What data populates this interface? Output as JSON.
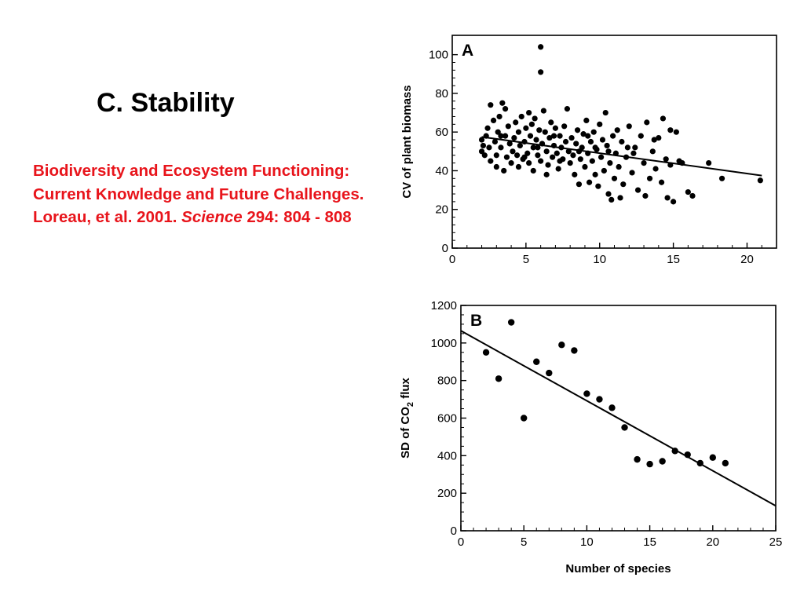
{
  "slide": {
    "title": "C. Stability",
    "citation": {
      "text_before": "Biodiversity and Ecosystem Functioning: Current Knowledge and Future Challenges.  Loreau, et al. 2001. ",
      "journal": "Science",
      "text_after": " 294: 804 - 808",
      "color": "#e8141b"
    }
  },
  "chart_data": [
    {
      "type": "scatter",
      "panel_label": "A",
      "xlabel": "",
      "ylabel": "CV of plant biomass",
      "xlim": [
        0,
        22
      ],
      "ylim": [
        0,
        110
      ],
      "xticks": [
        0,
        5,
        10,
        15,
        20
      ],
      "yticks": [
        0,
        20,
        40,
        60,
        80,
        100
      ],
      "grid": false,
      "regression": {
        "x": [
          2,
          21
        ],
        "y": [
          57.5,
          37.5
        ]
      },
      "points": [
        [
          6.0,
          104
        ],
        [
          6.0,
          91
        ],
        [
          2.0,
          50
        ],
        [
          2.0,
          56
        ],
        [
          2.1,
          53
        ],
        [
          2.2,
          48
        ],
        [
          2.3,
          58
        ],
        [
          2.4,
          62
        ],
        [
          2.5,
          52
        ],
        [
          2.6,
          45
        ],
        [
          2.6,
          74
        ],
        [
          2.8,
          66
        ],
        [
          2.9,
          55
        ],
        [
          3.0,
          42
        ],
        [
          3.0,
          48
        ],
        [
          3.1,
          60
        ],
        [
          3.2,
          68
        ],
        [
          3.3,
          52
        ],
        [
          3.4,
          75
        ],
        [
          3.5,
          40
        ],
        [
          3.6,
          72
        ],
        [
          3.6,
          58
        ],
        [
          3.7,
          47
        ],
        [
          3.8,
          63
        ],
        [
          3.9,
          54
        ],
        [
          4.0,
          44
        ],
        [
          4.1,
          50
        ],
        [
          4.2,
          57
        ],
        [
          4.3,
          65
        ],
        [
          4.4,
          48
        ],
        [
          4.5,
          60
        ],
        [
          4.5,
          42
        ],
        [
          4.6,
          53
        ],
        [
          4.7,
          68
        ],
        [
          4.8,
          46
        ],
        [
          4.9,
          55
        ],
        [
          5.0,
          62
        ],
        [
          5.1,
          49
        ],
        [
          5.2,
          70
        ],
        [
          5.2,
          44
        ],
        [
          5.3,
          58
        ],
        [
          5.4,
          64
        ],
        [
          5.5,
          52
        ],
        [
          5.5,
          40
        ],
        [
          5.6,
          67
        ],
        [
          5.7,
          56
        ],
        [
          5.8,
          48
        ],
        [
          5.9,
          61
        ],
        [
          6.0,
          45
        ],
        [
          6.1,
          54
        ],
        [
          6.2,
          71
        ],
        [
          6.3,
          60
        ],
        [
          6.4,
          50
        ],
        [
          6.5,
          43
        ],
        [
          6.6,
          57
        ],
        [
          6.7,
          65
        ],
        [
          6.8,
          47
        ],
        [
          6.9,
          53
        ],
        [
          7.0,
          62
        ],
        [
          7.1,
          49
        ],
        [
          7.2,
          41
        ],
        [
          7.3,
          58
        ],
        [
          7.4,
          52
        ],
        [
          7.5,
          46
        ],
        [
          7.6,
          63
        ],
        [
          7.7,
          55
        ],
        [
          7.8,
          72
        ],
        [
          7.9,
          50
        ],
        [
          8.0,
          44
        ],
        [
          8.1,
          57
        ],
        [
          8.2,
          48
        ],
        [
          8.3,
          38
        ],
        [
          8.4,
          54
        ],
        [
          8.5,
          61
        ],
        [
          8.6,
          33
        ],
        [
          8.7,
          46
        ],
        [
          8.8,
          52
        ],
        [
          8.9,
          59
        ],
        [
          9.0,
          42
        ],
        [
          9.1,
          66
        ],
        [
          9.2,
          49
        ],
        [
          9.3,
          34
        ],
        [
          9.4,
          55
        ],
        [
          9.5,
          45
        ],
        [
          9.6,
          60
        ],
        [
          9.7,
          38
        ],
        [
          9.8,
          51
        ],
        [
          9.9,
          32
        ],
        [
          10.0,
          64
        ],
        [
          10.1,
          47
        ],
        [
          10.2,
          56
        ],
        [
          10.3,
          40
        ],
        [
          10.4,
          70
        ],
        [
          10.5,
          53
        ],
        [
          10.6,
          28
        ],
        [
          10.7,
          44
        ],
        [
          10.8,
          25
        ],
        [
          10.9,
          58
        ],
        [
          11.0,
          36
        ],
        [
          11.1,
          49
        ],
        [
          11.2,
          61
        ],
        [
          11.3,
          42
        ],
        [
          11.4,
          26
        ],
        [
          11.5,
          55
        ],
        [
          11.6,
          33
        ],
        [
          11.8,
          47
        ],
        [
          12.0,
          63
        ],
        [
          12.2,
          39
        ],
        [
          12.4,
          52
        ],
        [
          12.6,
          30
        ],
        [
          12.8,
          58
        ],
        [
          13.0,
          44
        ],
        [
          13.1,
          27
        ],
        [
          13.2,
          65
        ],
        [
          13.4,
          36
        ],
        [
          13.6,
          50
        ],
        [
          13.8,
          41
        ],
        [
          14.0,
          57
        ],
        [
          14.2,
          34
        ],
        [
          14.3,
          67
        ],
        [
          14.5,
          46
        ],
        [
          14.6,
          26
        ],
        [
          14.8,
          61
        ],
        [
          15.0,
          24
        ],
        [
          15.2,
          60
        ],
        [
          15.4,
          45
        ],
        [
          15.6,
          44
        ],
        [
          16.0,
          29
        ],
        [
          16.3,
          27
        ],
        [
          17.4,
          44
        ],
        [
          18.3,
          36
        ],
        [
          20.9,
          35
        ],
        [
          8.6,
          50
        ],
        [
          6.9,
          58
        ],
        [
          5.8,
          52
        ],
        [
          4.9,
          47
        ],
        [
          3.3,
          58
        ],
        [
          9.7,
          52
        ],
        [
          10.6,
          50
        ],
        [
          12.3,
          49
        ],
        [
          7.3,
          45
        ],
        [
          6.4,
          38
        ],
        [
          11.9,
          52
        ],
        [
          13.7,
          56
        ],
        [
          9.2,
          58
        ],
        [
          14.8,
          43
        ]
      ]
    },
    {
      "type": "scatter",
      "panel_label": "B",
      "xlabel": "Number of species",
      "ylabel": "SD of CO2 flux",
      "xlim": [
        0,
        25
      ],
      "ylim": [
        0,
        1200
      ],
      "xticks": [
        0,
        5,
        10,
        15,
        20,
        25
      ],
      "yticks": [
        0,
        200,
        400,
        600,
        800,
        1000,
        1200
      ],
      "grid": false,
      "regression": {
        "x": [
          0,
          25
        ],
        "y": [
          1065,
          133
        ]
      },
      "points": [
        [
          2,
          950
        ],
        [
          3,
          810
        ],
        [
          4,
          1110
        ],
        [
          5,
          600
        ],
        [
          6,
          900
        ],
        [
          7,
          840
        ],
        [
          8,
          990
        ],
        [
          9,
          960
        ],
        [
          10,
          730
        ],
        [
          11,
          700
        ],
        [
          12,
          655
        ],
        [
          13,
          550
        ],
        [
          14,
          380
        ],
        [
          15,
          355
        ],
        [
          16,
          370
        ],
        [
          17,
          425
        ],
        [
          18,
          405
        ],
        [
          19,
          360
        ],
        [
          20,
          390
        ],
        [
          21,
          360
        ]
      ]
    }
  ]
}
